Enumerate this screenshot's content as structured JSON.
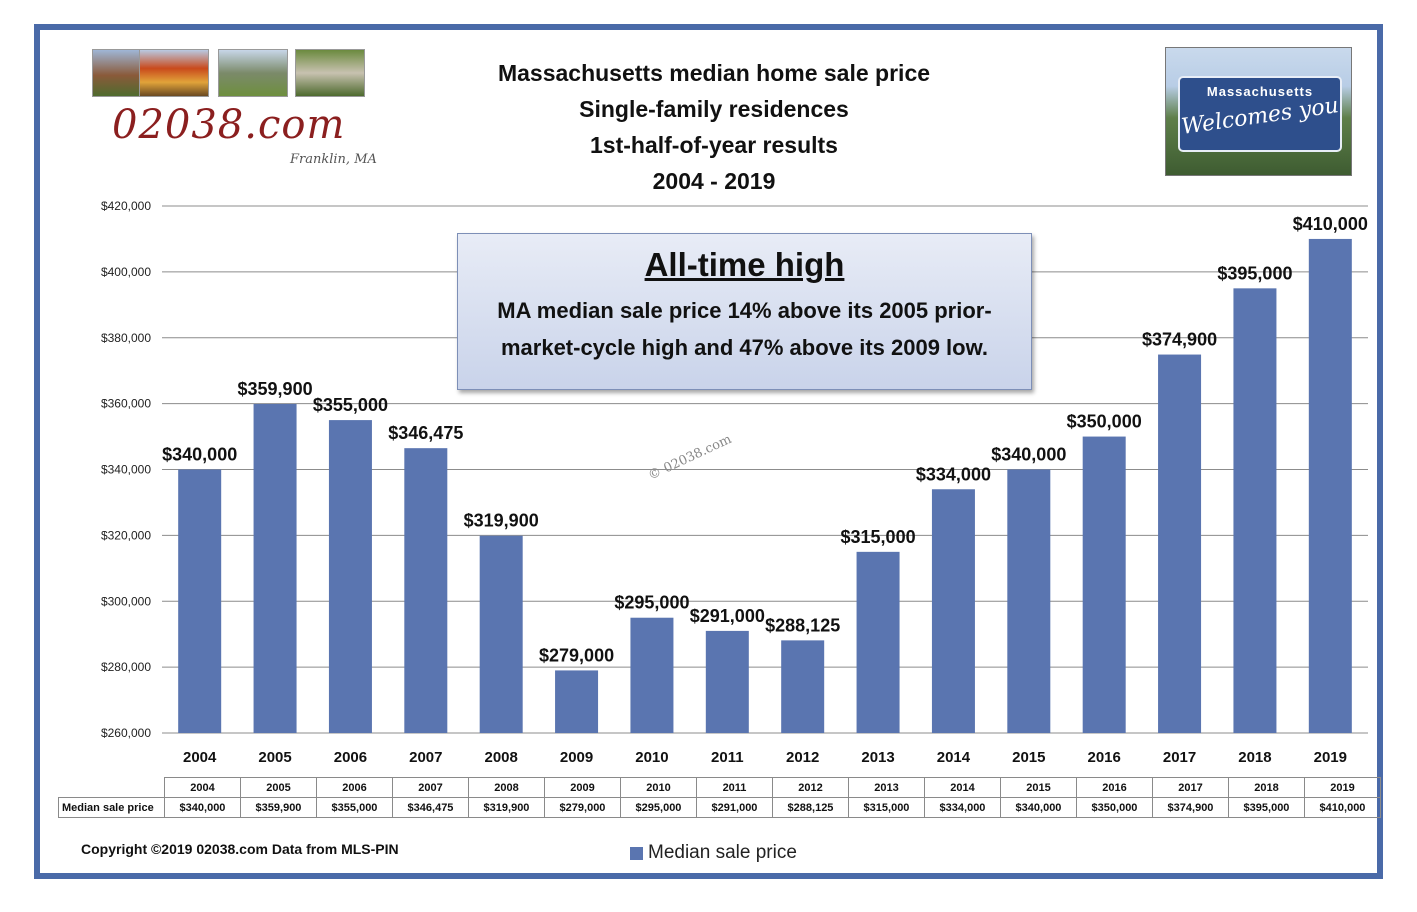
{
  "title_lines": [
    "Massachusetts median home sale price",
    "Single-family residences",
    "1st-half-of-year results",
    "2004 - 2019"
  ],
  "logo": {
    "text": "02038.com",
    "subtitle": "Franklin, MA"
  },
  "sign": {
    "line1": "Massachusetts",
    "line2": "Welcomes you"
  },
  "callout": {
    "heading": "All-time high",
    "body_lines": [
      "MA median sale price 14% above its 2005 prior-",
      "market-cycle high and 47% above its 2009 low."
    ]
  },
  "watermark": "© 02038.com",
  "copyright": "Copyright ©2019 02038.com  Data from MLS-PIN",
  "colors": {
    "bar": "#5a75b0",
    "frame": "#4a6aa8",
    "grid": "#8c8c8c"
  },
  "chart_data": {
    "type": "bar",
    "categories": [
      "2004",
      "2005",
      "2006",
      "2007",
      "2008",
      "2009",
      "2010",
      "2011",
      "2012",
      "2013",
      "2014",
      "2015",
      "2016",
      "2017",
      "2018",
      "2019"
    ],
    "series": [
      {
        "name": "Median sale price",
        "values": [
          340000,
          359900,
          355000,
          346475,
          319900,
          279000,
          295000,
          291000,
          288125,
          315000,
          334000,
          340000,
          350000,
          374900,
          395000,
          410000
        ],
        "data_labels": [
          "$340,000",
          "$359,900",
          "$355,000",
          "$346,475",
          "$319,900",
          "$279,000",
          "$295,000",
          "$291,000",
          "$288,125",
          "$315,000",
          "$334,000",
          "$340,000",
          "$350,000",
          "$374,900",
          "$395,000",
          "$410,000"
        ]
      }
    ],
    "ylim": [
      260000,
      420000
    ],
    "yticks": [
      260000,
      280000,
      300000,
      320000,
      340000,
      360000,
      380000,
      400000,
      420000
    ],
    "ytick_labels": [
      "$260,000",
      "$280,000",
      "$300,000",
      "$320,000",
      "$340,000",
      "$360,000",
      "$380,000",
      "$400,000",
      "$420,000"
    ],
    "grid": true,
    "legend": "bottom",
    "table": {
      "row_header": "Median sale price",
      "values": [
        "$340,000",
        "$359,900",
        "$355,000",
        "$346,475",
        "$319,900",
        "$279,000",
        "$295,000",
        "$291,000",
        "$288,125",
        "$315,000",
        "$334,000",
        "$340,000",
        "$350,000",
        "$374,900",
        "$395,000",
        "$410,000"
      ]
    }
  }
}
